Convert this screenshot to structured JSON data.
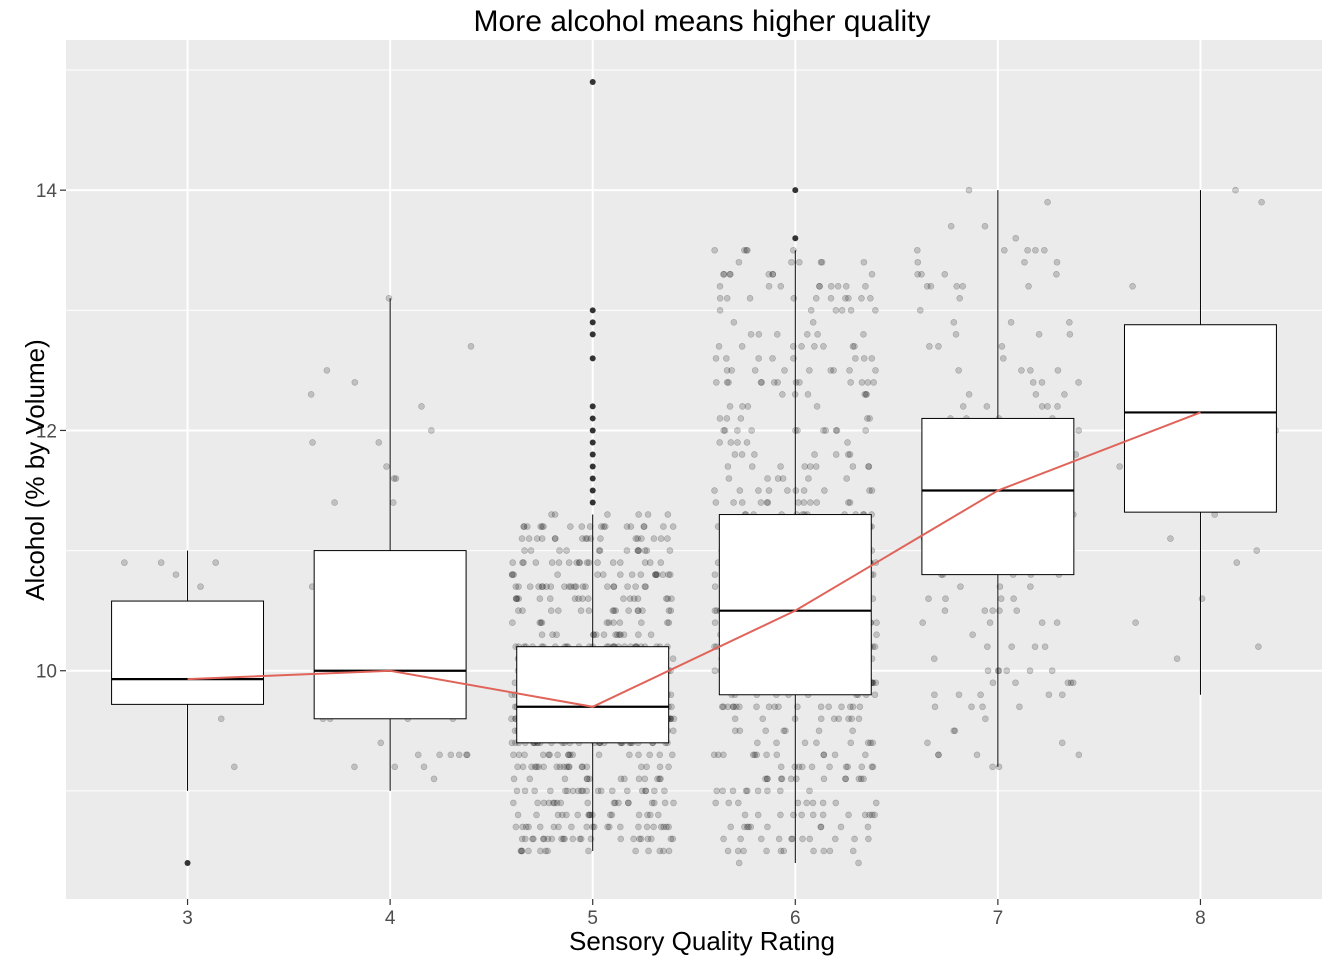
{
  "chart_data": {
    "type": "box",
    "title": "More alcohol means higher quality",
    "xlabel": "Sensory Quality Rating",
    "ylabel": "Alcohol (% by Volume)",
    "categories": [
      "3",
      "4",
      "5",
      "6",
      "7",
      "8"
    ],
    "x_tick_labels": [
      "3",
      "4",
      "5",
      "6",
      "7",
      "8"
    ],
    "y_ticks": [
      10,
      12,
      14
    ],
    "y_tick_labels": [
      "10",
      "12",
      "14"
    ],
    "ylim": [
      8.1,
      15.25
    ],
    "grid": true,
    "boxes": [
      {
        "category": "3",
        "q1": 9.72,
        "median": 9.93,
        "q3": 10.58,
        "whisker_low": 9.0,
        "whisker_high": 11.0,
        "outliers": [
          8.4
        ]
      },
      {
        "category": "4",
        "q1": 9.6,
        "median": 10.0,
        "q3": 11.0,
        "whisker_low": 9.0,
        "whisker_high": 13.1,
        "outliers": []
      },
      {
        "category": "5",
        "q1": 9.4,
        "median": 9.7,
        "q3": 10.2,
        "whisker_low": 8.5,
        "whisker_high": 11.3,
        "outliers": [
          11.4,
          11.5,
          11.6,
          11.7,
          11.8,
          11.9,
          12.0,
          12.1,
          12.2,
          12.6,
          12.8,
          12.9,
          13.0,
          14.9
        ]
      },
      {
        "category": "6",
        "q1": 9.8,
        "median": 10.5,
        "q3": 11.3,
        "whisker_low": 8.4,
        "whisker_high": 13.5,
        "outliers": [
          13.6,
          14.0
        ]
      },
      {
        "category": "7",
        "q1": 10.8,
        "median": 11.5,
        "q3": 12.1,
        "whisker_low": 9.2,
        "whisker_high": 14.0,
        "outliers": []
      },
      {
        "category": "8",
        "q1": 11.32,
        "median": 12.15,
        "q3": 12.88,
        "whisker_low": 9.8,
        "whisker_high": 14.0,
        "outliers": []
      }
    ],
    "mean_line": {
      "color": "#e0645a",
      "values": [
        9.93,
        10.0,
        9.7,
        10.5,
        11.5,
        12.15
      ]
    },
    "jitter_points": {
      "color": "#000000",
      "opacity": 0.18,
      "counts": [
        10,
        53,
        681,
        638,
        199,
        18
      ]
    },
    "colors": {
      "panel_background": "#ebebeb",
      "grid": "#ffffff",
      "box_fill": "#ffffff",
      "box_stroke": "#000000",
      "outlier": "#333333"
    }
  }
}
